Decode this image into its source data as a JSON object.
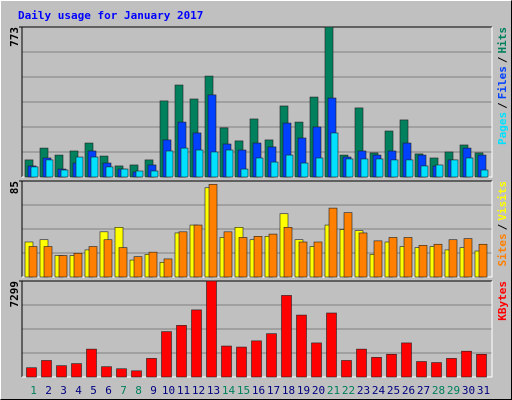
{
  "chart_data": [
    {
      "type": "bar",
      "title": "Daily usage for January 2017",
      "legend_separator": "/",
      "ylim": [
        0,
        773
      ],
      "yticks": [
        773
      ],
      "series": [
        {
          "name": "Hits",
          "color": "#00805c",
          "values": [
            88,
            149,
            113,
            134,
            175,
            108,
            57,
            62,
            88,
            392,
            474,
            402,
            520,
            253,
            186,
            299,
            191,
            366,
            283,
            412,
            773,
            113,
            356,
            124,
            237,
            294,
            119,
            98,
            129,
            165,
            124
          ]
        },
        {
          "name": "Files",
          "color": "#0040ff",
          "values": [
            57,
            98,
            41,
            72,
            134,
            72,
            41,
            26,
            62,
            191,
            283,
            227,
            423,
            170,
            139,
            175,
            155,
            278,
            201,
            258,
            407,
            103,
            134,
            113,
            134,
            175,
            113,
            57,
            88,
            149,
            113
          ]
        },
        {
          "name": "Pages",
          "color": "#00e0ff",
          "values": [
            52,
            88,
            36,
            103,
            103,
            52,
            41,
            31,
            31,
            134,
            149,
            139,
            129,
            139,
            41,
            98,
            77,
            113,
            72,
            98,
            227,
            93,
            93,
            93,
            88,
            88,
            57,
            62,
            88,
            98,
            36
          ]
        }
      ]
    },
    {
      "type": "bar",
      "legend_separator": "/",
      "ylim": [
        0,
        85
      ],
      "yticks": [
        85
      ],
      "series": [
        {
          "name": "Visits",
          "color": "#ffff00",
          "values": [
            31,
            33,
            19,
            19,
            24,
            40,
            44,
            15,
            20,
            13,
            39,
            46,
            79,
            35,
            44,
            33,
            36,
            56,
            33,
            27,
            46,
            42,
            41,
            20,
            31,
            27,
            26,
            27,
            24,
            26,
            23
          ]
        },
        {
          "name": "Sites",
          "color": "#ff8000",
          "values": [
            27,
            27,
            19,
            21,
            27,
            33,
            26,
            18,
            22,
            16,
            40,
            46,
            82,
            40,
            35,
            36,
            38,
            44,
            31,
            31,
            61,
            57,
            39,
            32,
            35,
            35,
            28,
            29,
            33,
            34,
            29
          ]
        }
      ]
    },
    {
      "type": "bar",
      "ylim": [
        0,
        7299
      ],
      "yticks": [
        7299
      ],
      "categories": [
        "1",
        "2",
        "3",
        "4",
        "5",
        "6",
        "7",
        "8",
        "9",
        "10",
        "11",
        "12",
        "13",
        "14",
        "15",
        "16",
        "17",
        "18",
        "19",
        "20",
        "21",
        "22",
        "23",
        "24",
        "25",
        "26",
        "27",
        "28",
        "29",
        "30",
        "31"
      ],
      "category_colors": [
        "#00805c",
        "#000080",
        "#000080",
        "#000080",
        "#000080",
        "#000080",
        "#00805c",
        "#00805c",
        "#000080",
        "#000080",
        "#000080",
        "#000080",
        "#000080",
        "#00805c",
        "#00805c",
        "#000080",
        "#000080",
        "#000080",
        "#000080",
        "#000080",
        "#00805c",
        "#00805c",
        "#000080",
        "#000080",
        "#000080",
        "#000080",
        "#000080",
        "#00805c",
        "#00805c",
        "#000080",
        "#000080"
      ],
      "series": [
        {
          "name": "KBytes",
          "color": "#ff0000",
          "values": [
            706,
            1256,
            863,
            1020,
            2119,
            785,
            628,
            471,
            1413,
            3453,
            3924,
            5101,
            7299,
            2354,
            2276,
            2747,
            3296,
            6200,
            4709,
            2590,
            4866,
            1256,
            2119,
            1491,
            1727,
            2590,
            1177,
            1099,
            1413,
            1962,
            1727
          ]
        }
      ]
    }
  ]
}
